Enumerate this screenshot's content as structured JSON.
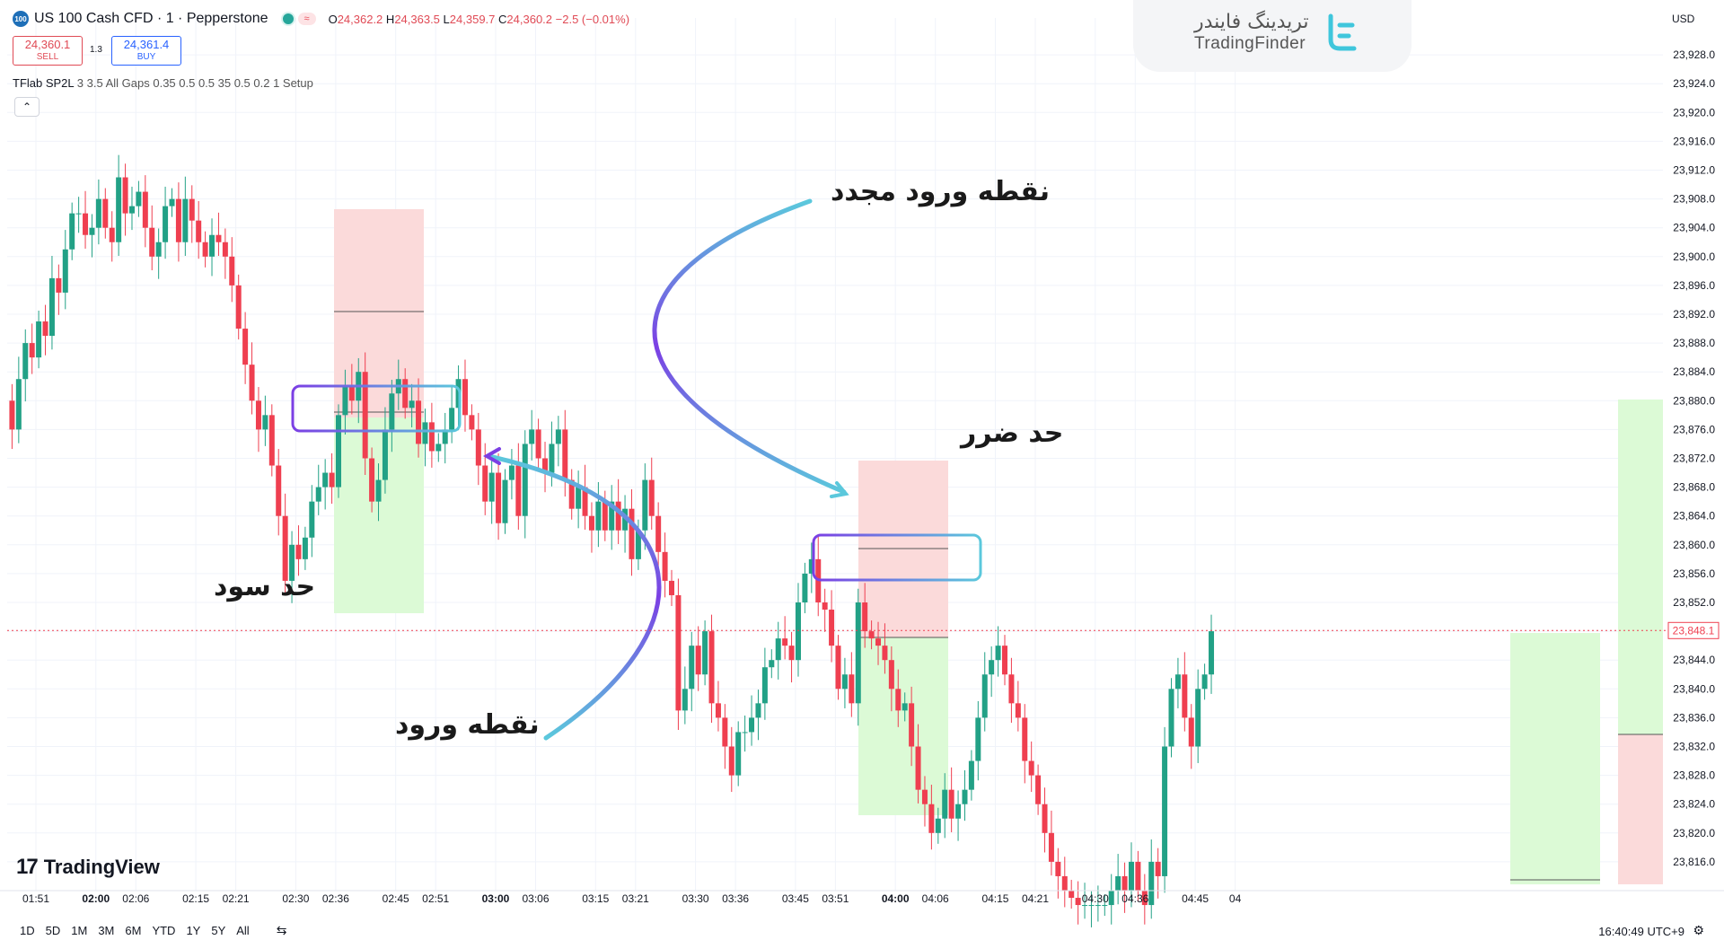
{
  "header": {
    "symbol_badge": "100",
    "symbol_title": "US 100 Cash CFD · 1 · Pepperstone",
    "ohlc": {
      "o": "24,362.2",
      "h": "24,363.5",
      "l": "24,359.7",
      "c": "24,360.2",
      "change": "−2.5 (−0.01%)"
    },
    "sell_price": "24,360.1",
    "sell_label": "SELL",
    "spread": "1.3",
    "buy_price": "24,361.4",
    "buy_label": "BUY",
    "indicator_name": "TFlab SP2L",
    "indicator_params": "3 3.5 All Gaps 0.35 0.5 0.5 35 0.5 0.2 1 Setup",
    "collapse_icon": "chevron-up-icon"
  },
  "brand": {
    "name_fa": "تریدینگ فایندر",
    "name_en": "TradingFinder",
    "logo_icon": "tradingfinder-logo-icon"
  },
  "currency": "USD",
  "watermark": "TradingView",
  "timeframes": [
    "1D",
    "5D",
    "1M",
    "3M",
    "6M",
    "YTD",
    "1Y",
    "5Y",
    "All"
  ],
  "calendar_icon": "calendar-range-icon",
  "clock": "16:40:49 UTC+9",
  "settings_icon": "gear-icon",
  "annotations": {
    "reentry": "نقطه ورود مجدد",
    "stop_loss": "حد ضرر",
    "take_profit": "حد سود",
    "entry": "نقطه ورود"
  },
  "colors": {
    "up": "#22a186",
    "down": "#ef3f50",
    "loss_zone": "#fbdada",
    "profit_zone": "#dcfad6",
    "entry_box_a": "#7b3fe4",
    "entry_box_b": "#5bc8dc"
  },
  "chart_data": {
    "type": "candlestick",
    "title": "",
    "ylim": [
      23810,
      23930
    ],
    "y_ticks": [
      "23,812.0",
      "23,816.0",
      "23,820.0",
      "23,824.0",
      "23,828.0",
      "23,832.0",
      "23,836.0",
      "23,840.0",
      "23,844.0",
      "23,848.0",
      "23,852.0",
      "23,856.0",
      "23,860.0",
      "23,864.0",
      "23,868.0",
      "23,872.0",
      "23,876.0",
      "23,880.0",
      "23,884.0",
      "23,888.0",
      "23,892.0",
      "23,896.0",
      "23,900.0",
      "23,904.0",
      "23,908.0",
      "23,912.0",
      "23,916.0",
      "23,920.0",
      "23,924.0",
      "23,928.0"
    ],
    "last_price_label": "23,848.1",
    "x_ticks": [
      {
        "label": "01:51",
        "t": 0
      },
      {
        "label": "02:00",
        "t": 9,
        "bold": true
      },
      {
        "label": "02:06",
        "t": 15
      },
      {
        "label": "02:15",
        "t": 24
      },
      {
        "label": "02:21",
        "t": 30
      },
      {
        "label": "02:30",
        "t": 39
      },
      {
        "label": "02:36",
        "t": 45
      },
      {
        "label": "02:45",
        "t": 54
      },
      {
        "label": "02:51",
        "t": 60
      },
      {
        "label": "03:00",
        "t": 69,
        "bold": true
      },
      {
        "label": "03:06",
        "t": 75
      },
      {
        "label": "03:15",
        "t": 84
      },
      {
        "label": "03:21",
        "t": 90
      },
      {
        "label": "03:30",
        "t": 99
      },
      {
        "label": "03:36",
        "t": 105
      },
      {
        "label": "03:45",
        "t": 114
      },
      {
        "label": "03:51",
        "t": 120
      },
      {
        "label": "04:00",
        "t": 129,
        "bold": true
      },
      {
        "label": "04:06",
        "t": 135
      },
      {
        "label": "04:15",
        "t": 144
      },
      {
        "label": "04:21",
        "t": 150
      },
      {
        "label": "04:30",
        "t": 159
      },
      {
        "label": "04:36",
        "t": 165
      },
      {
        "label": "04:45",
        "t": 174
      },
      {
        "label": "04",
        "t": 180
      }
    ],
    "candles_close": [
      23880,
      23876,
      23883,
      23888,
      23886,
      23891,
      23889,
      23897,
      23895,
      23901,
      23906,
      23906,
      23903,
      23904,
      23908,
      23904,
      23902,
      23911,
      23906,
      23907,
      23909,
      23904,
      23900,
      23902,
      23907,
      23908,
      23902,
      23908,
      23905,
      23902,
      23900,
      23903,
      23902,
      23900,
      23896,
      23890,
      23885,
      23880,
      23876,
      23878,
      23871,
      23864,
      23855,
      23860,
      23858,
      23861,
      23866,
      23868,
      23870,
      23868,
      23878,
      23882,
      23880,
      23884,
      23872,
      23866,
      23869,
      23876,
      23881,
      23883,
      23879,
      23880,
      23874,
      23877,
      23873,
      23874,
      23876,
      23879,
      23883,
      23878,
      23876,
      23871,
      23866,
      23870,
      23863,
      23869,
      23871,
      23864,
      23874,
      23876,
      23872,
      23870,
      23874,
      23876,
      23869,
      23865,
      23868,
      23864,
      23862,
      23866,
      23862,
      23866,
      23862,
      23865,
      23858,
      23862,
      23869,
      23864,
      23859,
      23855,
      23853,
      23837,
      23840,
      23846,
      23842,
      23848,
      23838,
      23836,
      23832,
      23828,
      23834,
      23834,
      23836,
      23838,
      23843,
      23844,
      23847,
      23846,
      23844,
      23852,
      23856,
      23858,
      23852,
      23851,
      23846,
      23840,
      23842,
      23838,
      23852,
      23848,
      23847,
      23846,
      23844,
      23840,
      23837,
      23838,
      23832,
      23826,
      23824,
      23820,
      23822,
      23826,
      23822,
      23824,
      23826,
      23830,
      23836,
      23842,
      23844,
      23846,
      23842,
      23838,
      23836,
      23830,
      23828,
      23824,
      23820,
      23816,
      23814,
      23812,
      23811,
      23810,
      23810,
      23810,
      23810,
      23810,
      23812,
      23814,
      23812,
      23816,
      23812,
      23810,
      23816,
      23814,
      23832,
      23840,
      23842,
      23836,
      23832,
      23840,
      23842,
      23848
    ]
  }
}
